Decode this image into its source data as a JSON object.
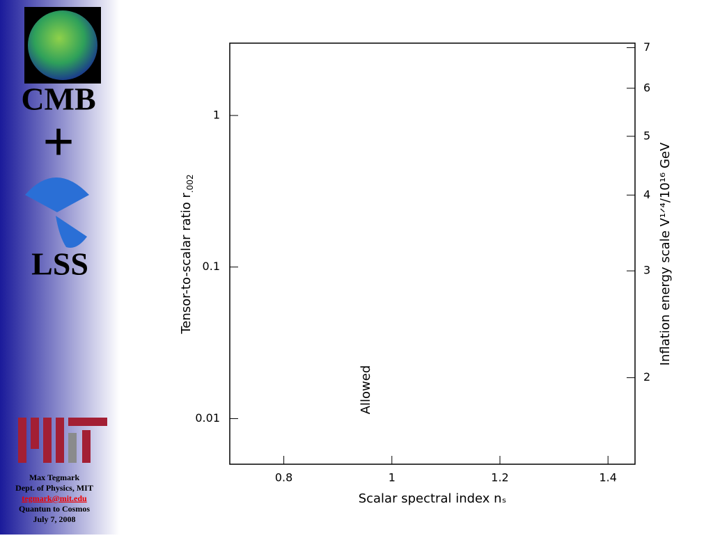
{
  "sidebar": {
    "heading_top": "CMB",
    "plus": "+",
    "heading_bottom": "LSS",
    "footer": [
      "Max Tegmark",
      "Dept. of Physics, MIT",
      "tegmark@mit.edu",
      "Quantun to Cosmos",
      "July 7, 2008"
    ]
  },
  "chart_data": {
    "type": "scatter",
    "series": [],
    "xlabel": "Scalar spectral index nₛ",
    "ylabel": [
      "Tensor-to-scalar ratio r",
      ".002"
    ],
    "y2label": "Inflation energy scale V¹ᐟ⁴/10¹⁶ GeV",
    "annotation": "Allowed",
    "xlim": [
      0.7,
      1.45
    ],
    "xticks": [
      0.8,
      1,
      1.2,
      1.4
    ],
    "ylim": [
      0.005,
      3
    ],
    "yticks": [
      1,
      0.1,
      0.01
    ],
    "yscale": "log",
    "y2lim": [
      1.44,
      7.12
    ],
    "y2ticks": [
      2,
      3,
      4,
      5,
      6,
      7
    ],
    "y2scale": "log",
    "grid": false
  }
}
